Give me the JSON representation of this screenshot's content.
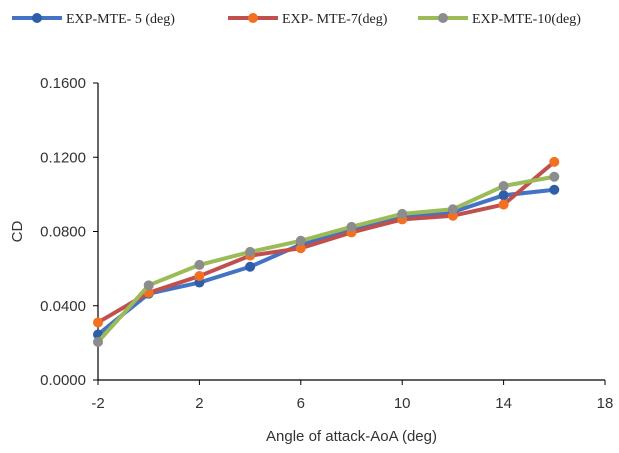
{
  "chart_data": {
    "type": "line",
    "title": "",
    "xlabel": "Angle of attack-AoA (deg)",
    "ylabel": "CD",
    "xlim": [
      -2,
      18
    ],
    "ylim": [
      0,
      0.16
    ],
    "xticks": [
      "-2",
      "2",
      "6",
      "10",
      "14",
      "18"
    ],
    "yticks": [
      "0.0000",
      "0.0400",
      "0.0800",
      "0.1200",
      "0.1600"
    ],
    "grid": false,
    "legend_position": "top",
    "x": [
      -2,
      0,
      2,
      4,
      6,
      8,
      10,
      12,
      14,
      16
    ],
    "series": [
      {
        "name": "EXP-MTE- 5 (deg)",
        "color": "#4472c4",
        "marker_color": "#2e5ea8",
        "values": [
          0.0245,
          0.0465,
          0.0525,
          0.061,
          0.073,
          0.0805,
          0.088,
          0.0905,
          0.0995,
          0.1025
        ]
      },
      {
        "name": "EXP- MTE-7(deg)",
        "color": "#c0504d",
        "marker_color": "#f37021",
        "values": [
          0.031,
          0.047,
          0.056,
          0.067,
          0.071,
          0.0795,
          0.0865,
          0.0885,
          0.0945,
          0.1175
        ]
      },
      {
        "name": "EXP-MTE-10(deg)",
        "color": "#9bbb59",
        "marker_color": "#8c8c8c",
        "values": [
          0.0205,
          0.051,
          0.062,
          0.069,
          0.075,
          0.0825,
          0.0895,
          0.092,
          0.1045,
          0.1095
        ]
      }
    ]
  }
}
